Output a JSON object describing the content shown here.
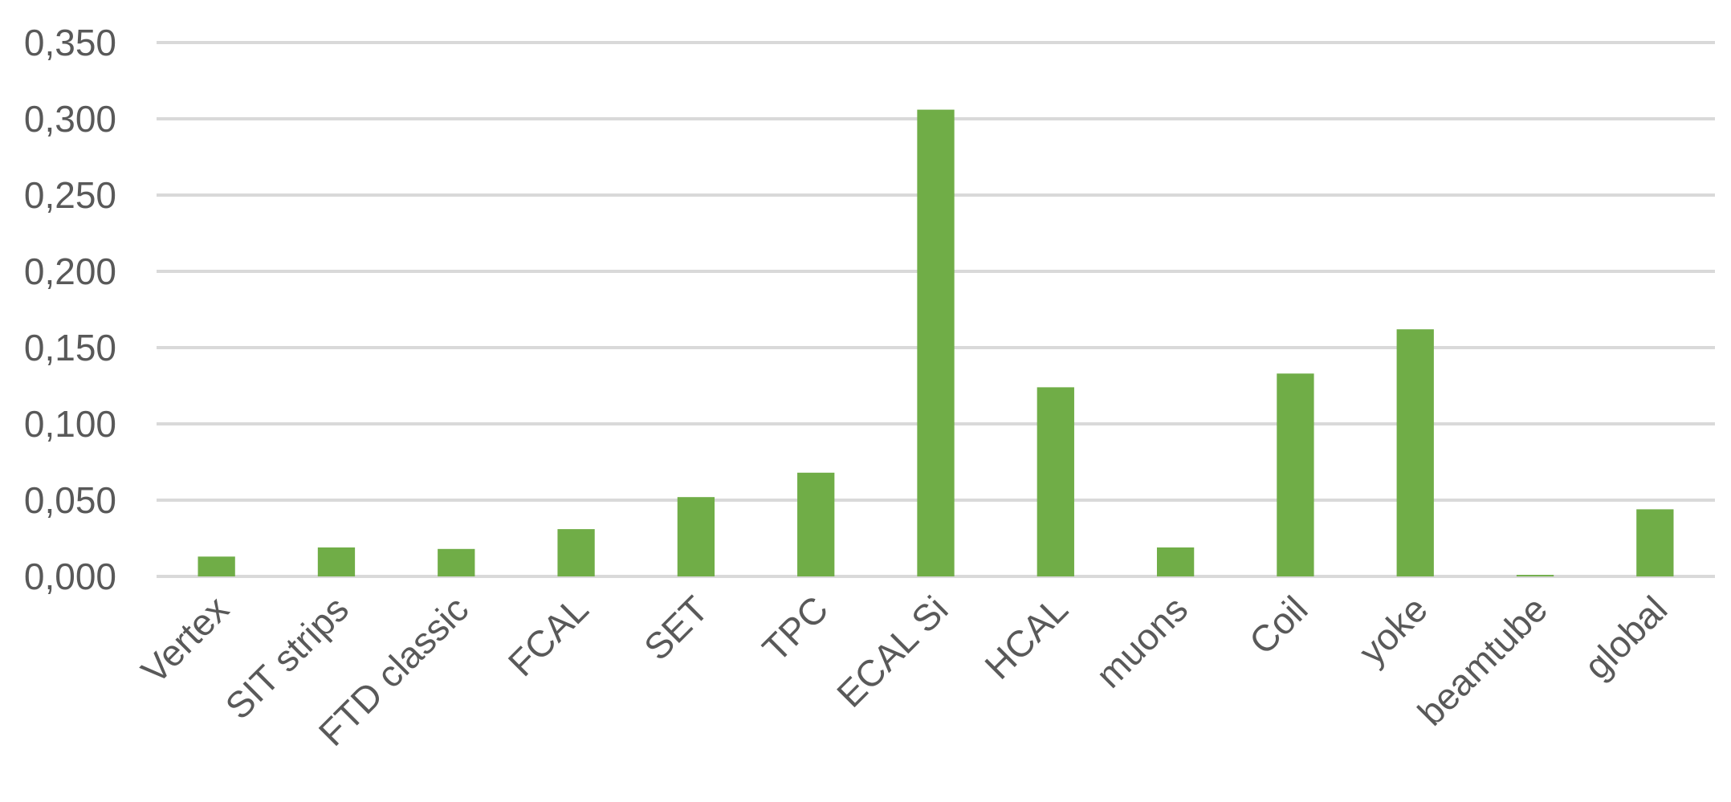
{
  "chart_data": {
    "type": "bar",
    "title": "",
    "xlabel": "",
    "ylabel": "",
    "categories": [
      "Vertex",
      "SIT strips",
      "FTD classic",
      "FCAL",
      "SET",
      "TPC",
      "ECAL Si",
      "HCAL",
      "muons",
      "Coil",
      "yoke",
      "beamtube",
      "global"
    ],
    "values": [
      0.013,
      0.019,
      0.018,
      0.031,
      0.052,
      0.068,
      0.306,
      0.124,
      0.019,
      0.133,
      0.162,
      0.001,
      0.044
    ],
    "ylim": [
      0,
      0.35
    ],
    "yticks": [
      0,
      0.05,
      0.1,
      0.15,
      0.2,
      0.25,
      0.3,
      0.35
    ],
    "ytick_labels": [
      "0,000",
      "0,050",
      "0,100",
      "0,150",
      "0,200",
      "0,250",
      "0,300",
      "0,350"
    ],
    "grid": "horizontal",
    "legend": "none",
    "bar_color": "#70ad47",
    "grid_color": "#d9d9d9",
    "label_color": "#595959"
  }
}
